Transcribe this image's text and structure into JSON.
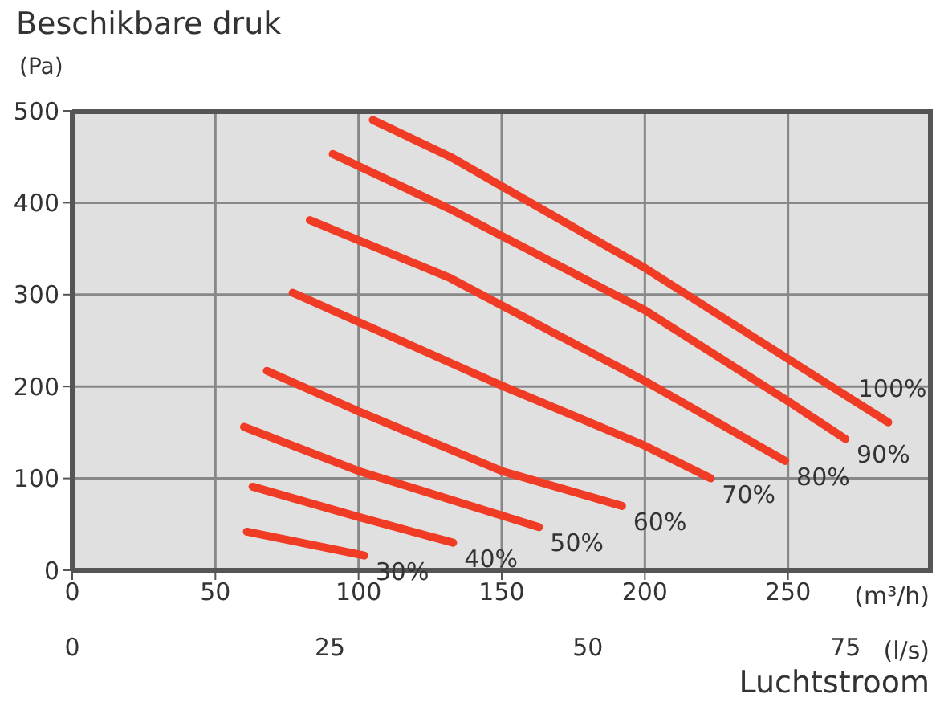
{
  "chart_data": {
    "type": "line",
    "title": "Beschikbare druk",
    "ylabel": "(Pa)",
    "xlabel": "(m³/h)",
    "x2label": "(l/s)",
    "annotations": [
      "Luchtstroom"
    ],
    "xlim": [
      0,
      300
    ],
    "xticks": [
      0,
      50,
      100,
      150,
      200,
      250
    ],
    "x2lim": [
      0,
      83.3
    ],
    "x2ticks": [
      0,
      25,
      50,
      75
    ],
    "ylim": [
      0,
      500
    ],
    "yticks": [
      0,
      100,
      200,
      300,
      400,
      500
    ],
    "grid": true,
    "legend": false,
    "marker": "none",
    "line_style": "solid",
    "series": [
      {
        "name": "100%",
        "color": "#f03c24",
        "x": [
          105,
          132,
          200,
          250,
          285
        ],
        "values": [
          490,
          450,
          329,
          230,
          161
        ]
      },
      {
        "name": "90%",
        "color": "#f03c24",
        "x": [
          91,
          132,
          200,
          250,
          270
        ],
        "values": [
          453,
          393,
          283,
          184,
          143
        ]
      },
      {
        "name": "80%",
        "color": "#f03c24",
        "x": [
          83,
          132,
          200,
          249
        ],
        "values": [
          381,
          318,
          206,
          119
        ]
      },
      {
        "name": "70%",
        "color": "#f03c24",
        "x": [
          77,
          150,
          199,
          223
        ],
        "values": [
          302,
          201,
          137,
          100
        ]
      },
      {
        "name": "60%",
        "color": "#f03c24",
        "x": [
          68,
          100,
          150,
          192
        ],
        "values": [
          217,
          173,
          108,
          70
        ]
      },
      {
        "name": "50%",
        "color": "#f03c24",
        "x": [
          60,
          100,
          163
        ],
        "values": [
          156,
          108,
          47
        ]
      },
      {
        "name": "40%",
        "color": "#f03c24",
        "x": [
          63,
          100,
          133
        ],
        "values": [
          91,
          58,
          30
        ]
      },
      {
        "name": "30%",
        "color": "#f03c24",
        "x": [
          61,
          102
        ],
        "values": [
          42,
          16
        ]
      }
    ]
  }
}
